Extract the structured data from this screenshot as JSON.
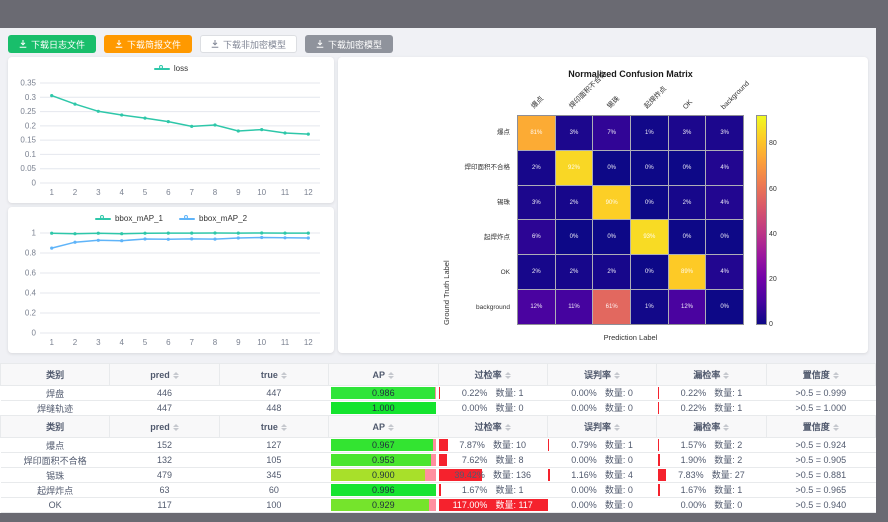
{
  "colors": {
    "frame_bg": "#6a6a72",
    "page_bg": "#f0f1f5",
    "loss_line": "#2ec7a9",
    "map2_line": "#5fb4f9",
    "rate_bar": "#f5222d",
    "ap_rest": "#ff8f9f"
  },
  "toolbar": {
    "buttons": [
      {
        "label": "下载日志文件",
        "icon": "download-icon",
        "variant": "green"
      },
      {
        "label": "下载简报文件",
        "icon": "download-icon",
        "variant": "orange"
      },
      {
        "label": "下载非加密模型",
        "icon": "download-icon",
        "variant": "white"
      },
      {
        "label": "下载加密模型",
        "icon": "download-icon",
        "variant": "gray"
      }
    ]
  },
  "chart_data": [
    {
      "id": "loss",
      "type": "line",
      "title": "",
      "legend_position": "top",
      "grid": true,
      "x": [
        1,
        2,
        3,
        4,
        5,
        6,
        7,
        8,
        9,
        10,
        11,
        12
      ],
      "ylim": [
        0,
        0.35
      ],
      "yticks": [
        "0",
        "0.05",
        "0.1",
        "0.15",
        "0.2",
        "0.25",
        "0.3",
        "0.35"
      ],
      "series": [
        {
          "name": "loss",
          "color": "#2ec7a9",
          "values": [
            0.306,
            0.276,
            0.251,
            0.238,
            0.227,
            0.215,
            0.198,
            0.203,
            0.182,
            0.187,
            0.175,
            0.171
          ]
        }
      ]
    },
    {
      "id": "map",
      "type": "line",
      "title": "",
      "legend_position": "top",
      "grid": true,
      "x": [
        1,
        2,
        3,
        4,
        5,
        6,
        7,
        8,
        9,
        10,
        11,
        12
      ],
      "ylim": [
        0,
        1
      ],
      "yticks": [
        "0",
        "0.2",
        "0.4",
        "0.6",
        "0.8",
        "1"
      ],
      "series": [
        {
          "name": "bbox_mAP_1",
          "color": "#2ec7a9",
          "values": [
            0.998,
            0.993,
            0.998,
            0.993,
            0.998,
            0.999,
            0.999,
            1.0,
            0.999,
            1.0,
            0.999,
            0.999
          ]
        },
        {
          "name": "bbox_mAP_2",
          "color": "#5fb4f9",
          "values": [
            0.849,
            0.908,
            0.927,
            0.923,
            0.94,
            0.937,
            0.941,
            0.939,
            0.95,
            0.955,
            0.952,
            0.95
          ]
        }
      ]
    },
    {
      "id": "confusion",
      "type": "heatmap",
      "title": "Normalized Confusion Matrix",
      "xlabel": "Prediction Label",
      "ylabel": "Ground Truth Label",
      "colormap": "plasma",
      "categories": [
        "爆点",
        "焊印面积不合格",
        "锡珠",
        "起焊炸点",
        "OK",
        "background"
      ],
      "matrix_percent": [
        [
          81,
          3,
          7,
          1,
          3,
          3
        ],
        [
          2,
          92,
          0,
          0,
          0,
          4
        ],
        [
          3,
          2,
          90,
          0,
          2,
          4
        ],
        [
          6,
          0,
          0,
          93,
          0,
          0
        ],
        [
          2,
          2,
          2,
          0,
          89,
          4
        ],
        [
          12,
          11,
          61,
          1,
          12,
          0
        ]
      ],
      "vmax": 100,
      "colorbar_max": 93,
      "colorbar_ticks": [
        0,
        20,
        40,
        60,
        80
      ]
    }
  ],
  "tables": [
    {
      "headers": [
        {
          "label": "类别",
          "sortable": false
        },
        {
          "label": "pred",
          "sortable": true
        },
        {
          "label": "true",
          "sortable": true
        },
        {
          "label": "AP",
          "sortable": true
        },
        {
          "label": "过检率",
          "sortable": true
        },
        {
          "label": "误判率",
          "sortable": true
        },
        {
          "label": "漏检率",
          "sortable": true
        },
        {
          "label": "置信度",
          "sortable": true
        }
      ],
      "rows": [
        {
          "name": "焊盘",
          "pred": "446",
          "true": "447",
          "ap": 0.986,
          "ap_display": "0.986",
          "ap_color": "#2fe53a",
          "overkill": {
            "pct": "0.22%",
            "count": "数量: 1",
            "bar": 0.22
          },
          "misjudge": {
            "pct": "0.00%",
            "count": "数量: 0",
            "bar": 0
          },
          "miss": {
            "pct": "0.22%",
            "count": "数量: 1",
            "bar": 0.22
          },
          "confidence": ">0.5 = 0.999"
        },
        {
          "name": "焊缝轨迹",
          "pred": "447",
          "true": "448",
          "ap": 1.0,
          "ap_display": "1.000",
          "ap_color": "#14e42e",
          "overkill": {
            "pct": "0.00%",
            "count": "数量: 0",
            "bar": 0
          },
          "misjudge": {
            "pct": "0.00%",
            "count": "数量: 0",
            "bar": 0
          },
          "miss": {
            "pct": "0.22%",
            "count": "数量: 1",
            "bar": 0.22
          },
          "confidence": ">0.5 = 1.000"
        }
      ]
    },
    {
      "headers": [
        {
          "label": "类别",
          "sortable": false
        },
        {
          "label": "pred",
          "sortable": true
        },
        {
          "label": "true",
          "sortable": true
        },
        {
          "label": "AP",
          "sortable": true
        },
        {
          "label": "过检率",
          "sortable": true
        },
        {
          "label": "误判率",
          "sortable": true
        },
        {
          "label": "漏检率",
          "sortable": true
        },
        {
          "label": "置信度",
          "sortable": true
        }
      ],
      "rows": [
        {
          "name": "爆点",
          "pred": "152",
          "true": "127",
          "ap": 0.967,
          "ap_display": "0.967",
          "ap_color": "#33e431",
          "overkill": {
            "pct": "7.87%",
            "count": "数量: 10",
            "bar": 7.87
          },
          "misjudge": {
            "pct": "0.79%",
            "count": "数量: 1",
            "bar": 0.79
          },
          "miss": {
            "pct": "1.57%",
            "count": "数量: 2",
            "bar": 1.57
          },
          "confidence": ">0.5 = 0.924"
        },
        {
          "name": "焊印面积不合格",
          "pred": "132",
          "true": "105",
          "ap": 0.953,
          "ap_display": "0.953",
          "ap_color": "#4ae52e",
          "overkill": {
            "pct": "7.62%",
            "count": "数量: 8",
            "bar": 7.62
          },
          "misjudge": {
            "pct": "0.00%",
            "count": "数量: 0",
            "bar": 0
          },
          "miss": {
            "pct": "1.90%",
            "count": "数量: 2",
            "bar": 1.9
          },
          "confidence": ">0.5 = 0.905"
        },
        {
          "name": "锡珠",
          "pred": "479",
          "true": "345",
          "ap": 0.9,
          "ap_display": "0.900",
          "ap_color": "#a8e02a",
          "overkill": {
            "pct": "39.42%",
            "count": "数量: 136",
            "bar": 39.42
          },
          "misjudge": {
            "pct": "1.16%",
            "count": "数量: 4",
            "bar": 1.16
          },
          "miss": {
            "pct": "7.83%",
            "count": "数量: 27",
            "bar": 7.83
          },
          "confidence": ">0.5 = 0.881"
        },
        {
          "name": "起焊炸点",
          "pred": "63",
          "true": "60",
          "ap": 0.996,
          "ap_display": "0.996",
          "ap_color": "#18e431",
          "overkill": {
            "pct": "1.67%",
            "count": "数量: 1",
            "bar": 1.67
          },
          "misjudge": {
            "pct": "0.00%",
            "count": "数量: 0",
            "bar": 0
          },
          "miss": {
            "pct": "1.67%",
            "count": "数量: 1",
            "bar": 1.67
          },
          "confidence": ">0.5 = 0.965"
        },
        {
          "name": "OK",
          "pred": "117",
          "true": "100",
          "ap": 0.929,
          "ap_display": "0.929",
          "ap_color": "#75e42c",
          "overkill": {
            "pct": "117.00%",
            "count": "数量: 117",
            "bar": 117
          },
          "misjudge": {
            "pct": "0.00%",
            "count": "数量: 0",
            "bar": 0
          },
          "miss": {
            "pct": "0.00%",
            "count": "数量: 0",
            "bar": 0
          },
          "confidence": ">0.5 = 0.940"
        }
      ]
    }
  ]
}
